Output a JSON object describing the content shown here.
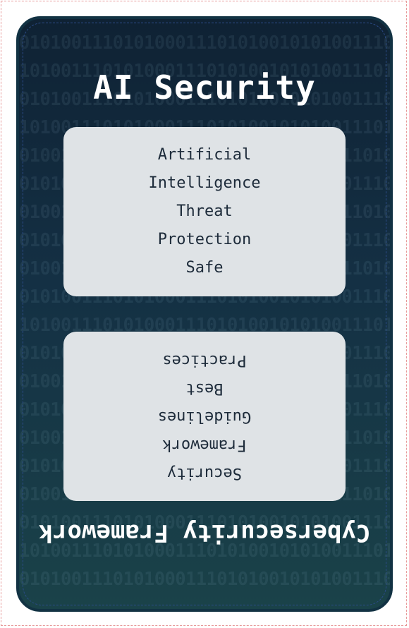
{
  "card": {
    "title": "AI Security",
    "bottom_title": "Cybersecurity Framework",
    "background_text": "010100111010100011101010010101001110101000111010100101010011101010001110101001010100111010100011101010"
  },
  "top_box": {
    "lines": [
      "Artificial",
      "Intelligence",
      "Threat",
      "Protection",
      "Safe"
    ]
  },
  "bottom_box": {
    "lines": [
      "Security",
      "Framework",
      "Guidelines",
      "Best",
      "Practices"
    ]
  },
  "colors": {
    "card_bg_top": "#0f2234",
    "card_bg_bottom": "#1a4249",
    "box_bg": "#dfe3e6",
    "text_dark": "#1d2b3a",
    "title_text": "#ffffff"
  }
}
